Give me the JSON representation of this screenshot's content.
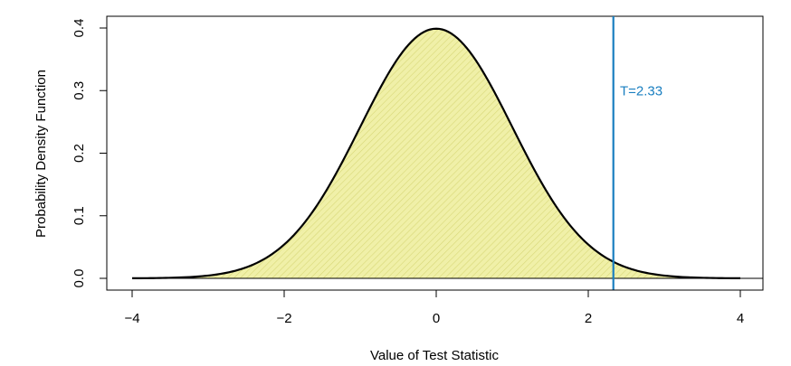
{
  "chart_data": {
    "type": "area",
    "distribution": "standard normal",
    "title": "",
    "xlabel": "Value of Test Statistic",
    "ylabel": "Probability Density Function",
    "xlim": [
      -4,
      4
    ],
    "ylim": [
      0,
      0.4
    ],
    "x_ticks": [
      "−4",
      "−2",
      "0",
      "2",
      "4"
    ],
    "x_tick_values": [
      -4,
      -2,
      0,
      2,
      4
    ],
    "y_ticks": [
      "0.0",
      "0.1",
      "0.2",
      "0.3",
      "0.4"
    ],
    "y_tick_values": [
      0.0,
      0.1,
      0.2,
      0.3,
      0.4
    ],
    "grid": false,
    "curve": {
      "x": [
        -4,
        -3.5,
        -3,
        -2.5,
        -2,
        -1.5,
        -1,
        -0.5,
        0,
        0.5,
        1,
        1.5,
        2,
        2.5,
        3,
        3.5,
        4
      ],
      "y": [
        0.0001,
        0.0009,
        0.0044,
        0.0175,
        0.054,
        0.1295,
        0.242,
        0.3521,
        0.3989,
        0.3521,
        0.242,
        0.1295,
        0.054,
        0.0175,
        0.0044,
        0.0009,
        0.0001
      ]
    },
    "fill": {
      "color": "#f0f0a8",
      "hatch_color": "#d8d878",
      "pattern": "diagonal-lines"
    },
    "annotations": [
      {
        "type": "vline",
        "x": 2.33,
        "color": "#1a7fc0"
      },
      {
        "type": "text",
        "label": "T=2.33",
        "x": 2.5,
        "y": 0.3,
        "color": "#1a7fc0"
      }
    ]
  }
}
